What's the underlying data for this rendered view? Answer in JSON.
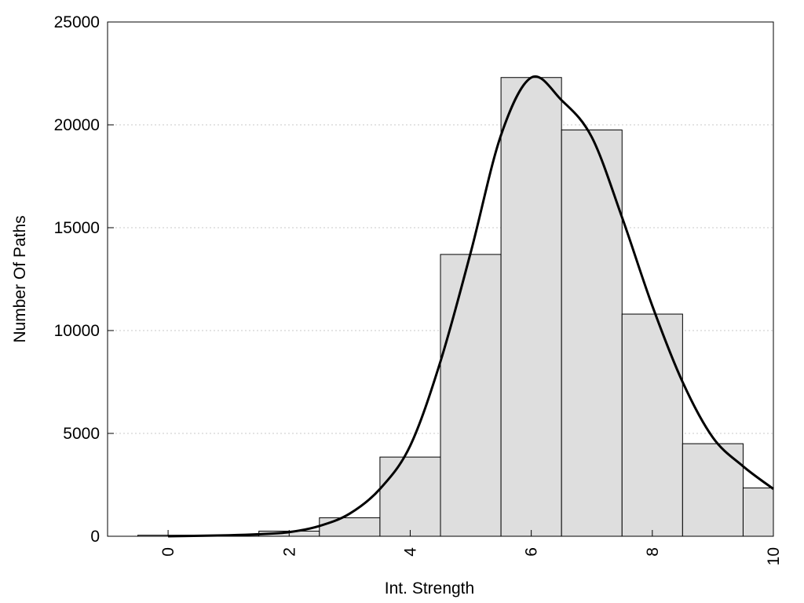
{
  "chart_data": {
    "type": "bar",
    "title": "",
    "xlabel": "Int. Strength",
    "ylabel": "Number Of Paths",
    "xlim": [
      -1,
      10
    ],
    "ylim": [
      0,
      25000
    ],
    "x_ticks": [
      0,
      2,
      4,
      6,
      8,
      10
    ],
    "x_tick_labels": [
      "0",
      "2",
      "4",
      "6",
      "8",
      "10"
    ],
    "y_ticks": [
      0,
      5000,
      10000,
      15000,
      20000,
      25000
    ],
    "y_tick_labels": [
      "0",
      "5000",
      "10000",
      "15000",
      "20000",
      "25000"
    ],
    "grid": "horizontal-dotted",
    "bar_color": "#dedede",
    "bars": {
      "x": [
        0,
        1,
        2,
        3,
        4,
        5,
        6,
        7,
        8,
        9,
        10
      ],
      "values": [
        50,
        50,
        250,
        900,
        3850,
        13700,
        22300,
        19750,
        10800,
        4500,
        2350
      ]
    },
    "curve": {
      "x": [
        0,
        1,
        1.5,
        2,
        2.5,
        3,
        3.5,
        4,
        4.5,
        5,
        5.5,
        6,
        6.5,
        7,
        7.5,
        8,
        8.5,
        9,
        9.5,
        10
      ],
      "y": [
        0,
        50,
        100,
        200,
        500,
        1100,
        2300,
        4400,
        8500,
        13800,
        19500,
        22300,
        21200,
        19400,
        15500,
        11200,
        7500,
        4800,
        3400,
        2300
      ]
    }
  }
}
